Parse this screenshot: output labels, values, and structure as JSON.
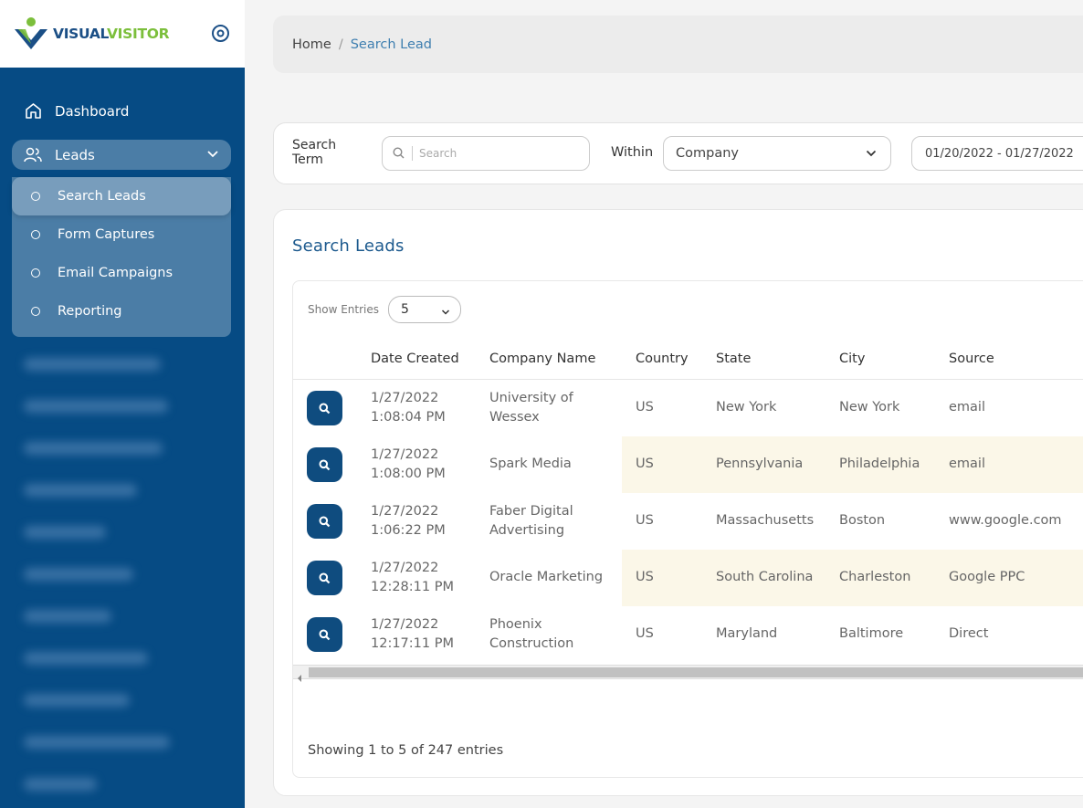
{
  "brand": {
    "name_part1": "VISUAL",
    "name_part2": "VISITOR",
    "colors": {
      "navy": "#1b4f86",
      "green": "#7cbf3c",
      "sidebar": "#064b84"
    }
  },
  "sidebar": {
    "dashboard_label": "Dashboard",
    "leads_label": "Leads",
    "submenu": [
      {
        "label": "Search Leads",
        "active": true
      },
      {
        "label": "Form Captures"
      },
      {
        "label": "Email Campaigns"
      },
      {
        "label": "Reporting"
      }
    ]
  },
  "breadcrumb": {
    "home": "Home",
    "separator": "/",
    "current": "Search Lead"
  },
  "filters": {
    "search_term_label": "Search Term",
    "search_placeholder": "Search",
    "within_label": "Within",
    "within_value": "Company",
    "date_range": "01/20/2022 - 01/27/2022"
  },
  "card": {
    "title": "Search Leads",
    "show_entries_label": "Show Entries",
    "entries_value": "5",
    "footer": "Showing 1 to 5 of 247 entries"
  },
  "table": {
    "columns": [
      "Date Created",
      "Company Name",
      "Country",
      "State",
      "City",
      "Source"
    ],
    "rows": [
      {
        "date": "1/27/2022",
        "time": "1:08:04 PM",
        "company_1": "University of",
        "company_2": "Wessex",
        "country": "US",
        "state": "New York",
        "city": "New York",
        "source": "email"
      },
      {
        "date": "1/27/2022",
        "time": "1:08:00 PM",
        "company_1": "Spark Media",
        "company_2": "",
        "country": "US",
        "state": "Pennsylvania",
        "city": "Philadelphia",
        "source": "email"
      },
      {
        "date": "1/27/2022",
        "time": "1:06:22 PM",
        "company_1": "Faber Digital",
        "company_2": "Advertising",
        "country": "US",
        "state": "Massachusetts",
        "city": "Boston",
        "source": "www.google.com"
      },
      {
        "date": "1/27/2022",
        "time": "12:28:11 PM",
        "company_1": "Oracle Marketing",
        "company_2": "",
        "country": "US",
        "state": "South Carolina",
        "city": "Charleston",
        "source": "Google PPC"
      },
      {
        "date": "1/27/2022",
        "time": "12:17:11 PM",
        "company_1": "Phoenix",
        "company_2": "Construction",
        "country": "US",
        "state": "Maryland",
        "city": "Baltimore",
        "source": "Direct"
      }
    ]
  }
}
